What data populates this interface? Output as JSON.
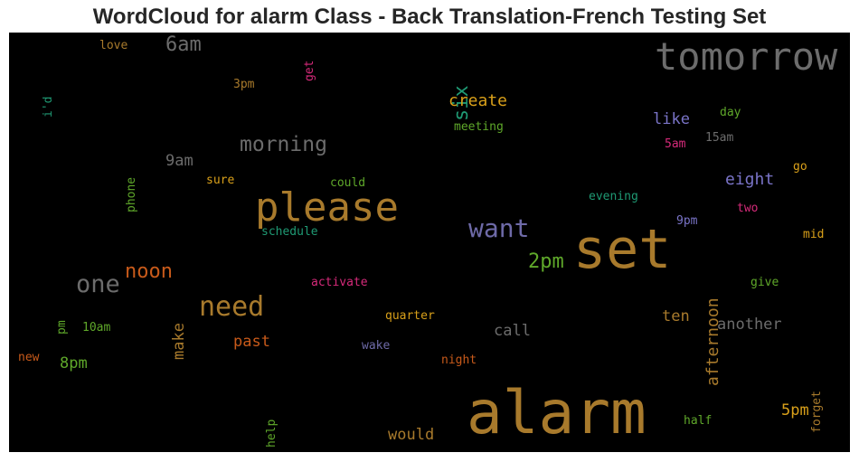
{
  "chart_data": {
    "type": "wordcloud",
    "title": "WordCloud for alarm Class - Back Translation-French Testing Set",
    "background": "#000000",
    "words": [
      {
        "text": "alarm",
        "size": 66,
        "color": "#a87a2c",
        "vertical": false
      },
      {
        "text": "set",
        "size": 60,
        "color": "#a87a2c",
        "vertical": false
      },
      {
        "text": "tomorrow",
        "size": 42,
        "color": "#6c6c6c",
        "vertical": false
      },
      {
        "text": "please",
        "size": 44,
        "color": "#a87a2c",
        "vertical": false
      },
      {
        "text": "need",
        "size": 30,
        "color": "#a87a2c",
        "vertical": false
      },
      {
        "text": "want",
        "size": 28,
        "color": "#6e6aa8",
        "vertical": false
      },
      {
        "text": "one",
        "size": 27,
        "color": "#6c6c6c",
        "vertical": false
      },
      {
        "text": "morning",
        "size": 23,
        "color": "#6c6c6c",
        "vertical": false
      },
      {
        "text": "6am",
        "size": 22,
        "color": "#6c6c6c",
        "vertical": false
      },
      {
        "text": "noon",
        "size": 22,
        "color": "#c85a1a",
        "vertical": false
      },
      {
        "text": "2pm",
        "size": 22,
        "color": "#5fa82a",
        "vertical": false
      },
      {
        "text": "six",
        "size": 22,
        "color": "#1f9a74",
        "vertical": true
      },
      {
        "text": "create",
        "size": 18,
        "color": "#d9a01a",
        "vertical": false
      },
      {
        "text": "eight",
        "size": 18,
        "color": "#7a74c8",
        "vertical": false
      },
      {
        "text": "afternoon",
        "size": 18,
        "color": "#a87a2c",
        "vertical": true
      },
      {
        "text": "like",
        "size": 17,
        "color": "#7a74c8",
        "vertical": false
      },
      {
        "text": "9am",
        "size": 17,
        "color": "#6c6c6c",
        "vertical": false
      },
      {
        "text": "make",
        "size": 17,
        "color": "#a87a2c",
        "vertical": true
      },
      {
        "text": "past",
        "size": 17,
        "color": "#c85a1a",
        "vertical": false
      },
      {
        "text": "call",
        "size": 17,
        "color": "#6c6c6c",
        "vertical": false
      },
      {
        "text": "another",
        "size": 17,
        "color": "#6c6c6c",
        "vertical": false
      },
      {
        "text": "ten",
        "size": 17,
        "color": "#a87a2c",
        "vertical": false
      },
      {
        "text": "8pm",
        "size": 17,
        "color": "#5fa82a",
        "vertical": false
      },
      {
        "text": "5pm",
        "size": 17,
        "color": "#d9a01a",
        "vertical": false
      },
      {
        "text": "would",
        "size": 17,
        "color": "#a87a2c",
        "vertical": false
      },
      {
        "text": "love",
        "size": 13,
        "color": "#a87a2c",
        "vertical": false
      },
      {
        "text": "get",
        "size": 13,
        "color": "#d62a7a",
        "vertical": true
      },
      {
        "text": "i'd",
        "size": 13,
        "color": "#1f9a74",
        "vertical": true
      },
      {
        "text": "3pm",
        "size": 13,
        "color": "#a87a2c",
        "vertical": false
      },
      {
        "text": "meeting",
        "size": 13,
        "color": "#5fa82a",
        "vertical": false
      },
      {
        "text": "day",
        "size": 13,
        "color": "#5fa82a",
        "vertical": false
      },
      {
        "text": "15am",
        "size": 13,
        "color": "#6c6c6c",
        "vertical": false
      },
      {
        "text": "5am",
        "size": 13,
        "color": "#d62a7a",
        "vertical": false
      },
      {
        "text": "phone",
        "size": 13,
        "color": "#5fa82a",
        "vertical": true
      },
      {
        "text": "go",
        "size": 13,
        "color": "#d9a01a",
        "vertical": false
      },
      {
        "text": "sure",
        "size": 13,
        "color": "#d9a01a",
        "vertical": false
      },
      {
        "text": "could",
        "size": 13,
        "color": "#5fa82a",
        "vertical": false
      },
      {
        "text": "evening",
        "size": 13,
        "color": "#1f9a74",
        "vertical": false
      },
      {
        "text": "two",
        "size": 13,
        "color": "#d62a7a",
        "vertical": false
      },
      {
        "text": "9pm",
        "size": 13,
        "color": "#7a74c8",
        "vertical": false
      },
      {
        "text": "mid",
        "size": 13,
        "color": "#d9a01a",
        "vertical": false
      },
      {
        "text": "schedule",
        "size": 13,
        "color": "#1f9a74",
        "vertical": false
      },
      {
        "text": "activate",
        "size": 13,
        "color": "#d62a7a",
        "vertical": false
      },
      {
        "text": "give",
        "size": 13,
        "color": "#5fa82a",
        "vertical": false
      },
      {
        "text": "pm",
        "size": 13,
        "color": "#5fa82a",
        "vertical": true
      },
      {
        "text": "10am",
        "size": 13,
        "color": "#5fa82a",
        "vertical": false
      },
      {
        "text": "quarter",
        "size": 13,
        "color": "#d9a01a",
        "vertical": false
      },
      {
        "text": "wake",
        "size": 13,
        "color": "#6e6aa8",
        "vertical": false
      },
      {
        "text": "new",
        "size": 13,
        "color": "#c85a1a",
        "vertical": false
      },
      {
        "text": "night",
        "size": 13,
        "color": "#c85a1a",
        "vertical": false
      },
      {
        "text": "forget",
        "size": 13,
        "color": "#a87a2c",
        "vertical": true
      },
      {
        "text": "help",
        "size": 13,
        "color": "#5fa82a",
        "vertical": true
      },
      {
        "text": "half",
        "size": 13,
        "color": "#5fa82a",
        "vertical": false
      }
    ]
  }
}
